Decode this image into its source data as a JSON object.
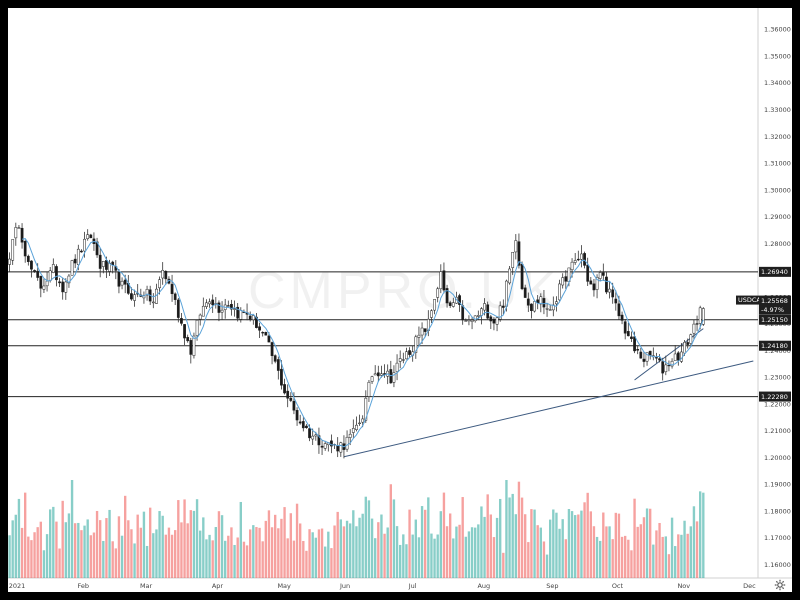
{
  "chart_data": {
    "type": "candlestick",
    "symbol": "USDCAD",
    "watermark": "CMPRO.UK",
    "colors": {
      "up": "#26a69a",
      "down": "#ef5350",
      "candle_up": "#ffffff",
      "candle_down": "#1a1a1a",
      "ma": "#5ba3d9",
      "trendline": "#3d5a80",
      "level": "#222222"
    },
    "y_axis": {
      "ylim": [
        1.155,
        1.368
      ],
      "ticks": [
        "1.36000",
        "1.35000",
        "1.34000",
        "1.33000",
        "1.32000",
        "1.31000",
        "1.30000",
        "1.29000",
        "1.28000",
        "1.27000",
        "1.26000",
        "1.25000",
        "1.24000",
        "1.23000",
        "1.22000",
        "1.21000",
        "1.20000",
        "1.19000",
        "1.18000",
        "1.17000",
        "1.16000"
      ]
    },
    "x_axis": {
      "labels": [
        {
          "text": "2021",
          "bar": 1
        },
        {
          "text": "Feb",
          "bar": 23
        },
        {
          "text": "Mar",
          "bar": 43
        },
        {
          "text": "Apr",
          "bar": 66
        },
        {
          "text": "May",
          "bar": 87
        },
        {
          "text": "Jun",
          "bar": 107
        },
        {
          "text": "Jul",
          "bar": 129
        },
        {
          "text": "Aug",
          "bar": 151
        },
        {
          "text": "Sep",
          "bar": 173
        },
        {
          "text": "Oct",
          "bar": 194
        },
        {
          "text": "Nov",
          "bar": 215
        },
        {
          "text": "Dec",
          "bar": 236
        }
      ]
    },
    "horizontal_levels": [
      {
        "value": 1.2694,
        "label": "1.26940"
      },
      {
        "value": 1.2515,
        "label": "1.25150"
      },
      {
        "value": 1.2418,
        "label": "1.24180"
      },
      {
        "value": 1.2228,
        "label": "1.22280"
      }
    ],
    "price_tags": {
      "symbol_label": "USDCAD",
      "last_price": "1.25568",
      "change": "-4.97%"
    },
    "trendlines": [
      {
        "from": {
          "bar": 107,
          "price": 1.2003
        },
        "to": {
          "bar": 238,
          "price": 1.2361
        }
      },
      {
        "from": {
          "bar": 200,
          "price": 1.229
        },
        "to": {
          "bar": 222,
          "price": 1.2482
        }
      }
    ],
    "ma_period": 5,
    "daily_points": [
      [
        0,
        1.276
      ],
      [
        3,
        1.288
      ],
      [
        6,
        1.272
      ],
      [
        10,
        1.264
      ],
      [
        14,
        1.27
      ],
      [
        17,
        1.264
      ],
      [
        20,
        1.272
      ],
      [
        23,
        1.278
      ],
      [
        26,
        1.283
      ],
      [
        29,
        1.272
      ],
      [
        33,
        1.27
      ],
      [
        36,
        1.264
      ],
      [
        40,
        1.26
      ],
      [
        43,
        1.262
      ],
      [
        46,
        1.258
      ],
      [
        49,
        1.27
      ],
      [
        52,
        1.262
      ],
      [
        55,
        1.25
      ],
      [
        58,
        1.24
      ],
      [
        61,
        1.254
      ],
      [
        64,
        1.26
      ],
      [
        67,
        1.256
      ],
      [
        70,
        1.258
      ],
      [
        73,
        1.254
      ],
      [
        76,
        1.254
      ],
      [
        79,
        1.25
      ],
      [
        82,
        1.244
      ],
      [
        85,
        1.235
      ],
      [
        88,
        1.225
      ],
      [
        92,
        1.215
      ],
      [
        96,
        1.209
      ],
      [
        100,
        1.206
      ],
      [
        104,
        1.204
      ],
      [
        107,
        1.205
      ],
      [
        110,
        1.209
      ],
      [
        113,
        1.216
      ],
      [
        116,
        1.231
      ],
      [
        119,
        1.233
      ],
      [
        122,
        1.23
      ],
      [
        125,
        1.236
      ],
      [
        128,
        1.24
      ],
      [
        131,
        1.245
      ],
      [
        134,
        1.25
      ],
      [
        136,
        1.26
      ],
      [
        138,
        1.268
      ],
      [
        140,
        1.256
      ],
      [
        143,
        1.258
      ],
      [
        146,
        1.25
      ],
      [
        149,
        1.252
      ],
      [
        152,
        1.256
      ],
      [
        155,
        1.251
      ],
      [
        158,
        1.258
      ],
      [
        160,
        1.27
      ],
      [
        162,
        1.283
      ],
      [
        164,
        1.264
      ],
      [
        167,
        1.256
      ],
      [
        170,
        1.26
      ],
      [
        172,
        1.254
      ],
      [
        175,
        1.26
      ],
      [
        178,
        1.268
      ],
      [
        181,
        1.273
      ],
      [
        183,
        1.276
      ],
      [
        185,
        1.267
      ],
      [
        187,
        1.262
      ],
      [
        189,
        1.27
      ],
      [
        191,
        1.264
      ],
      [
        194,
        1.256
      ],
      [
        197,
        1.248
      ],
      [
        200,
        1.24
      ],
      [
        203,
        1.237
      ],
      [
        206,
        1.238
      ],
      [
        209,
        1.233
      ],
      [
        212,
        1.237
      ],
      [
        215,
        1.239
      ],
      [
        218,
        1.246
      ],
      [
        220,
        1.252
      ],
      [
        222,
        1.2557
      ]
    ]
  }
}
